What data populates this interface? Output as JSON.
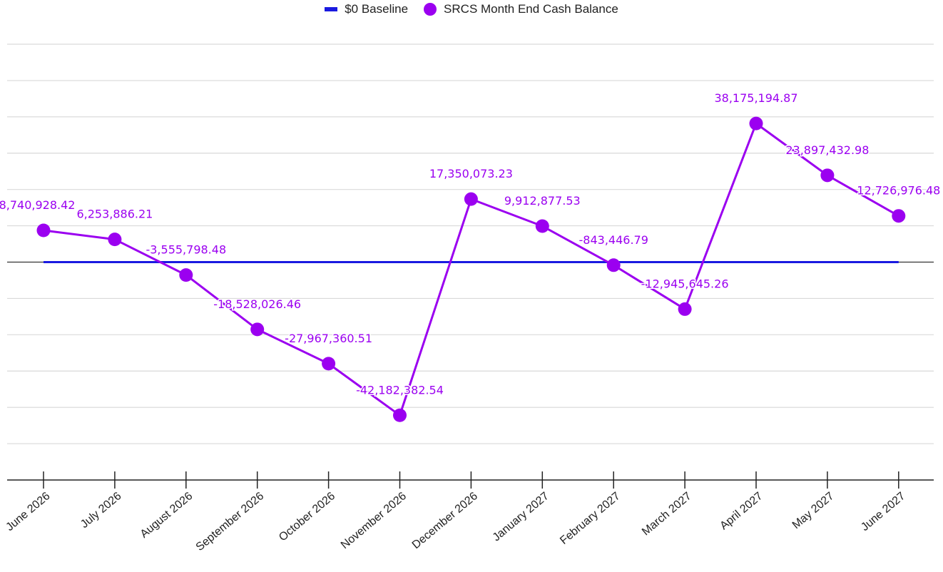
{
  "legend": {
    "baseline_label": "$0 Baseline",
    "balance_label": "SRCS Month End Cash Balance"
  },
  "colors": {
    "baseline": "#1a1ae0",
    "balance": "#9b00f0",
    "grid": "#d9d9d9",
    "axis": "#222222",
    "zero_line": "#333333"
  },
  "chart_data": {
    "type": "line",
    "title": "",
    "xlabel": "",
    "ylabel": "",
    "categories": [
      "June 2026",
      "July 2026",
      "August 2026",
      "September 2026",
      "October 2026",
      "November 2026",
      "December 2026",
      "January 2027",
      "February 2027",
      "March 2027",
      "April 2027",
      "May 2027",
      "June 2027"
    ],
    "ylim": [
      -60000000,
      60000000
    ],
    "y_grid_step": 10000000,
    "grid": true,
    "y_tick_labels_shown": false,
    "legend_position": "top-center",
    "series": [
      {
        "name": "$0 Baseline",
        "kind": "line",
        "values": [
          0,
          0,
          0,
          0,
          0,
          0,
          0,
          0,
          0,
          0,
          0,
          0,
          0
        ]
      },
      {
        "name": "SRCS Month End Cash Balance",
        "kind": "line-markers",
        "values": [
          8740928.42,
          6253886.21,
          -3555798.48,
          -18528026.46,
          -27967360.51,
          -42182382.54,
          17350073.23,
          9912877.53,
          -843446.79,
          -12945645.26,
          38175194.87,
          23897432.98,
          12726976.48
        ],
        "labels": [
          "8,740,928.42",
          "6,253,886.21",
          "-3,555,798.48",
          "-18,528,026.46",
          "-27,967,360.51",
          "-42,182,382.54",
          "17,350,073.23",
          "9,912,877.53",
          "-843,446.79",
          "-12,945,645.26",
          "38,175,194.87",
          "23,897,432.98",
          "12,726,976.48"
        ]
      }
    ]
  }
}
